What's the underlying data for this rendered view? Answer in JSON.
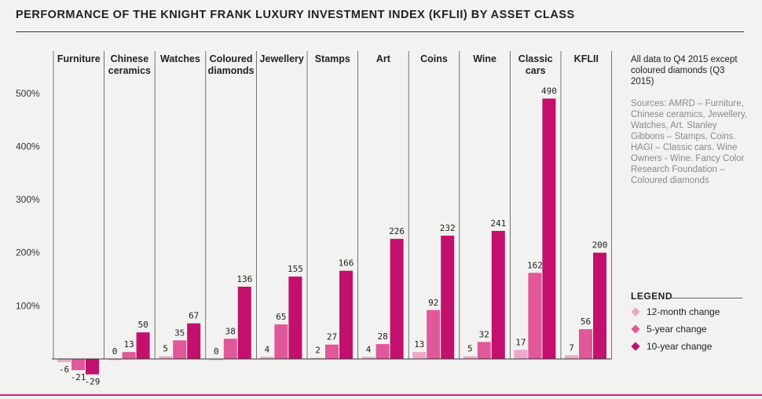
{
  "title": "PERFORMANCE OF THE KNIGHT FRANK LUXURY INVESTMENT INDEX (KFLII) BY ASSET CLASS",
  "notes": {
    "main": "All data to Q4 2015 except coloured diamonds (Q3 2015)",
    "sources": "Sources: AMRD – Furniture, Chinese ceramics, Jewellery, Watches, Art. Stanley Gibbons – Stamps, Coins. HAGI – Classic cars. Wine Owners - Wine. Fancy Color Research Foundation – Coloured diamonds"
  },
  "legend": {
    "title": "LEGEND",
    "items": [
      {
        "label": "12-month change",
        "color": "#eda7c8"
      },
      {
        "label": "5-year change",
        "color": "#e0589a"
      },
      {
        "label": "10-year change",
        "color": "#c3106d"
      }
    ]
  },
  "colors": {
    "accent": "#d71f86",
    "background": "#f2f2f1"
  },
  "chart_data": {
    "type": "bar",
    "title": "PERFORMANCE OF THE KNIGHT FRANK LUXURY INVESTMENT INDEX (KFLII) BY ASSET CLASS",
    "categories": [
      [
        "Furniture"
      ],
      [
        "Chinese",
        "ceramics"
      ],
      [
        "Watches"
      ],
      [
        "Coloured",
        "diamonds"
      ],
      [
        "Jewellery"
      ],
      [
        "Stamps"
      ],
      [
        "Art"
      ],
      [
        "Coins"
      ],
      [
        "Wine"
      ],
      [
        "Classic",
        "cars"
      ],
      [
        "KFLII"
      ]
    ],
    "series": [
      {
        "name": "12-month change",
        "color": "#eda7c8",
        "values": [
          -6,
          0,
          5,
          0,
          4,
          2,
          4,
          13,
          5,
          17,
          7
        ]
      },
      {
        "name": "5-year change",
        "color": "#e0589a",
        "values": [
          -21,
          13,
          35,
          38,
          65,
          27,
          28,
          92,
          32,
          162,
          56
        ]
      },
      {
        "name": "10-year change",
        "color": "#c3106d",
        "values": [
          -29,
          50,
          67,
          136,
          155,
          166,
          226,
          232,
          241,
          490,
          200
        ]
      }
    ],
    "yticks": [
      "100%",
      "200%",
      "300%",
      "400%",
      "500%"
    ],
    "ytick_values": [
      100,
      200,
      300,
      400,
      500
    ],
    "ylim": [
      -30,
      500
    ],
    "xlabel": "",
    "ylabel": "",
    "grid": false,
    "legend_position": "right"
  }
}
